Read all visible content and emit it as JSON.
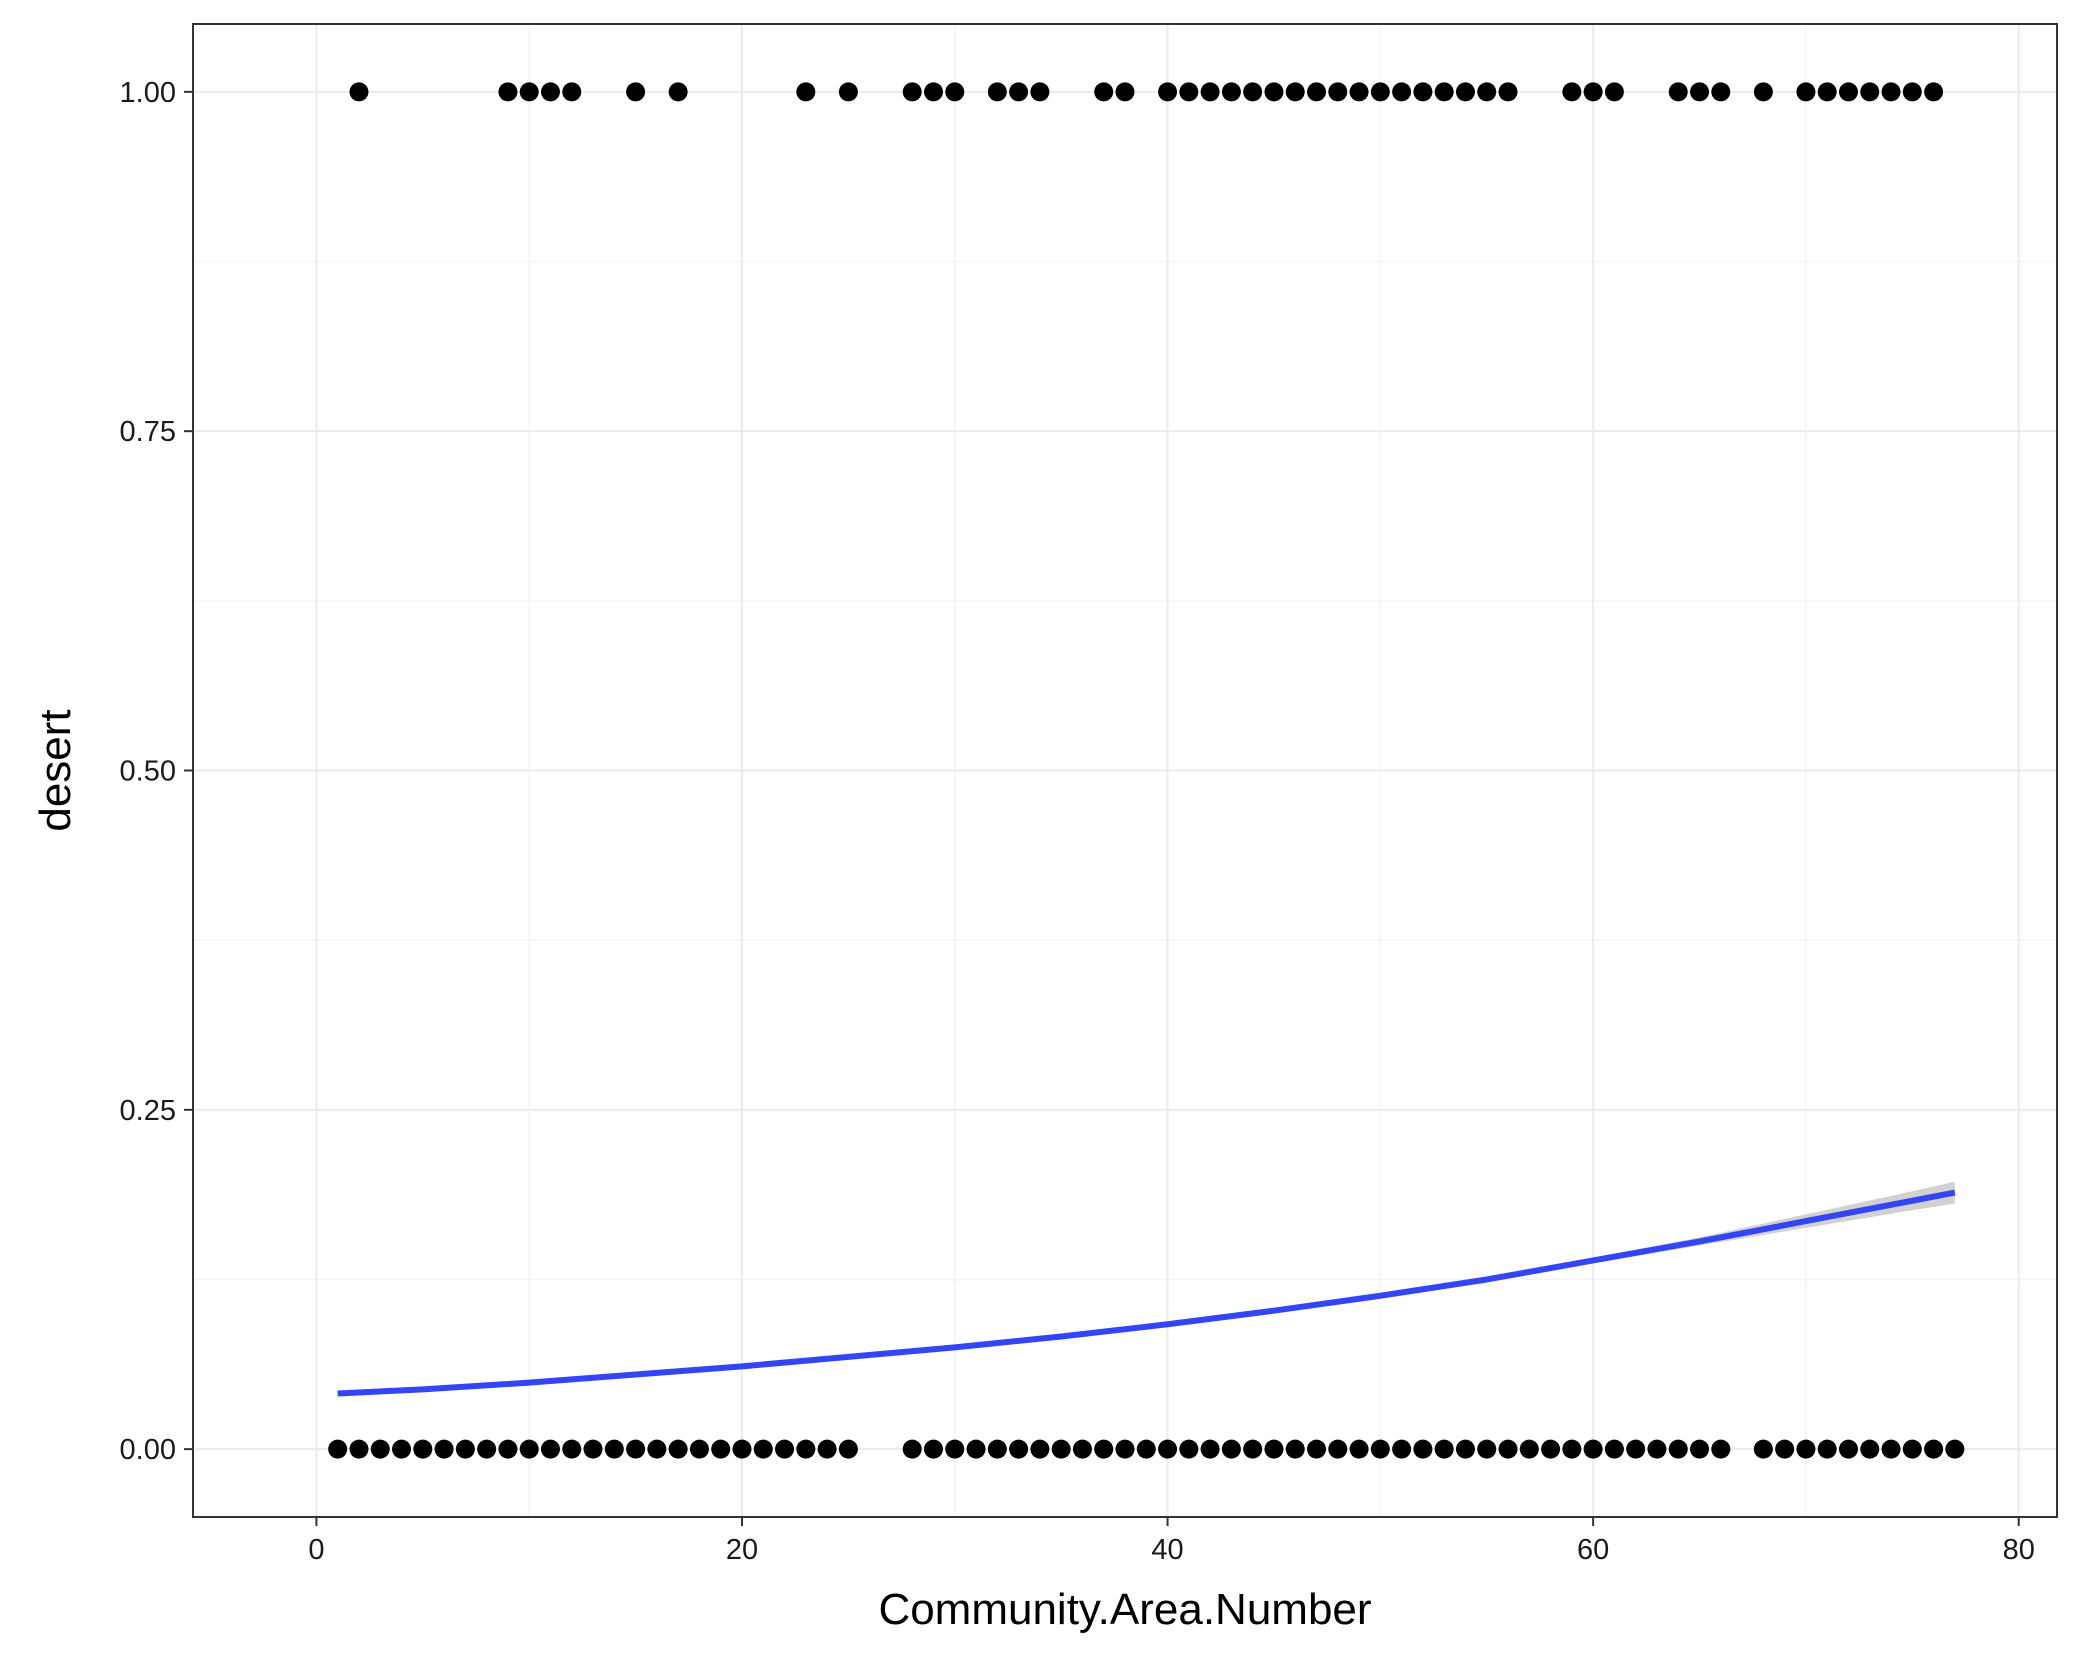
{
  "chart_data": {
    "type": "scatter",
    "title": "",
    "xlabel": "Community.Area.Number",
    "ylabel": "desert",
    "xlim": [
      -5.8,
      81.8
    ],
    "ylim": [
      -0.05,
      1.05
    ],
    "x_ticks": [
      0,
      20,
      40,
      60,
      80
    ],
    "x_tick_labels": [
      "0",
      "20",
      "40",
      "60",
      "80"
    ],
    "y_ticks": [
      0,
      0.25,
      0.5,
      0.75,
      1
    ],
    "y_tick_labels": [
      "0.00",
      "0.25",
      "0.50",
      "0.75",
      "1.00"
    ],
    "grid": true,
    "points_y1_x": [
      2,
      9,
      10,
      11,
      12,
      15,
      17,
      23,
      25,
      28,
      29,
      30,
      32,
      33,
      34,
      37,
      38,
      40,
      41,
      42,
      43,
      44,
      45,
      46,
      47,
      48,
      49,
      50,
      51,
      52,
      53,
      54,
      55,
      56,
      59,
      60,
      61,
      64,
      65,
      66,
      68,
      70,
      71,
      72,
      73,
      74,
      75,
      76
    ],
    "points_y0_x": [
      1,
      2,
      3,
      4,
      5,
      6,
      7,
      8,
      9,
      10,
      11,
      12,
      13,
      14,
      15,
      16,
      17,
      18,
      19,
      20,
      21,
      22,
      23,
      24,
      25,
      28,
      29,
      30,
      31,
      32,
      33,
      34,
      35,
      36,
      37,
      38,
      39,
      40,
      41,
      42,
      43,
      44,
      45,
      46,
      47,
      48,
      49,
      50,
      51,
      52,
      53,
      54,
      55,
      56,
      57,
      58,
      59,
      60,
      61,
      62,
      63,
      64,
      65,
      66,
      68,
      69,
      70,
      71,
      72,
      73,
      74,
      75,
      76,
      77
    ],
    "fit_line": {
      "x": [
        1,
        5,
        10,
        15,
        20,
        25,
        30,
        35,
        40,
        45,
        50,
        55,
        60,
        65,
        70,
        75,
        77
      ],
      "y": [
        0.041,
        0.044,
        0.049,
        0.055,
        0.061,
        0.068,
        0.075,
        0.083,
        0.092,
        0.102,
        0.113,
        0.125,
        0.139,
        0.153,
        0.168,
        0.183,
        0.189
      ],
      "ci_lower": [
        0.039,
        0.042,
        0.047,
        0.053,
        0.059,
        0.066,
        0.074,
        0.082,
        0.091,
        0.101,
        0.112,
        0.124,
        0.137,
        0.15,
        0.163,
        0.176,
        0.181
      ],
      "ci_upper": [
        0.043,
        0.046,
        0.051,
        0.057,
        0.063,
        0.07,
        0.076,
        0.084,
        0.093,
        0.103,
        0.114,
        0.126,
        0.141,
        0.156,
        0.173,
        0.19,
        0.197
      ]
    },
    "colors": {
      "points": "#000000",
      "fit_line": "#3345f5",
      "ci_band": "#bdbdbd",
      "grid": "#ebebeb",
      "panel_border": "#333333"
    }
  }
}
